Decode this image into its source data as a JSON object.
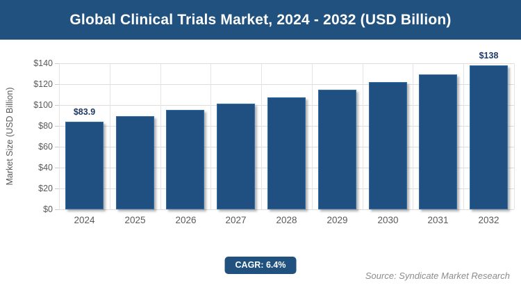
{
  "header": {
    "title": "Global Clinical Trials Market, 2024 - 2032 (USD Billion)"
  },
  "chart_data": {
    "type": "bar",
    "title": "Global Clinical Trials Market, 2024 - 2032 (USD Billion)",
    "categories": [
      "2024",
      "2025",
      "2026",
      "2027",
      "2028",
      "2029",
      "2030",
      "2031",
      "2032"
    ],
    "values": [
      83.9,
      89.3,
      95.0,
      101.1,
      107.6,
      114.4,
      121.8,
      129.6,
      138
    ],
    "data_labels": [
      "$83.9",
      "",
      "",
      "",
      "",
      "",
      "",
      "",
      "$138"
    ],
    "xlabel": "",
    "ylabel": "Market Size (USD Billion)",
    "ylim": [
      0,
      140
    ],
    "ytick_step": 20,
    "ytick_labels": [
      "$0",
      "$20",
      "$40",
      "$60",
      "$80",
      "$100",
      "$120",
      "$140"
    ],
    "grid": true,
    "legend": "none",
    "colors": {
      "header_bg": "#21527f",
      "bar_fill": "#1f5081",
      "bar_border": "#326fa5",
      "data_label": "#1f3864",
      "axis_text": "#595959",
      "gridline": "#dddddd"
    }
  },
  "footer": {
    "cagr_label": "CAGR: 6.4%",
    "source": "Source: Syndicate Market Research"
  }
}
